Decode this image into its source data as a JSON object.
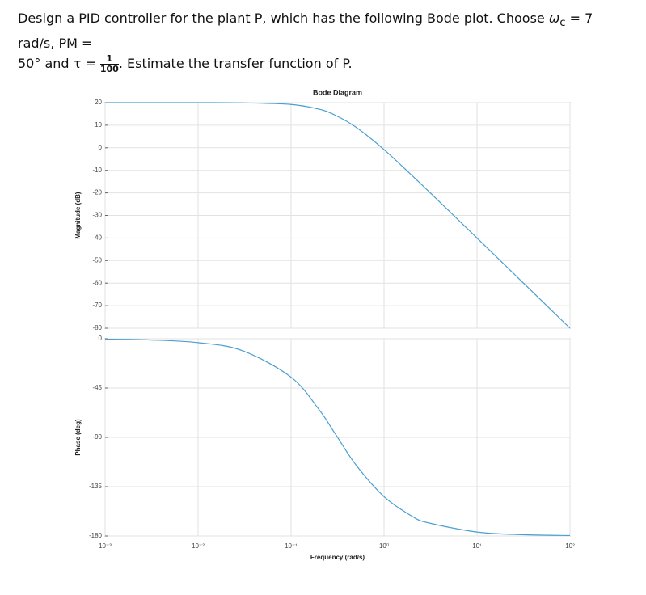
{
  "question": [
    "Design a PID controller for the plant P, which has the following Bode plot. Choose",
    "ω",
    "c",
    "= 7 rad/s, PM =",
    "50° and τ =",
    "1",
    "100",
    ". Estimate the transfer function of P."
  ],
  "chart_data": [
    {
      "type": "line",
      "title": "Bode Diagram",
      "ylabel": "Magnitude (dB)",
      "log_x": true,
      "grid": true,
      "x": [
        0.001,
        0.003,
        0.01,
        0.03,
        0.1,
        0.2,
        0.3,
        0.5,
        1,
        2,
        3,
        10,
        30,
        100
      ],
      "values": [
        20,
        20,
        20,
        19.9,
        19.2,
        17.1,
        14.4,
        9.1,
        -0.8,
        -12.3,
        -19.2,
        -40,
        -59.1,
        -80
      ],
      "color": "#4a9fd0",
      "xlim": [
        0.001,
        100
      ],
      "ylim": [
        -80,
        20
      ],
      "yticks": [
        20,
        10,
        0,
        -10,
        -20,
        -30,
        -40,
        -50,
        -60,
        -70,
        -80
      ]
    },
    {
      "type": "line",
      "ylabel": "Phase (deg)",
      "xlabel": "Frequency (rad/s)",
      "log_x": true,
      "grid": true,
      "x": [
        0.001,
        0.003,
        0.01,
        0.03,
        0.1,
        0.2,
        0.3,
        0.5,
        1,
        2,
        3,
        10,
        30,
        100
      ],
      "values": [
        -0.4,
        -1.1,
        -3.6,
        -10.9,
        -35.1,
        -64.7,
        -87,
        -115.3,
        -144.1,
        -162,
        -168,
        -176.4,
        -178.8,
        -179.6
      ],
      "color": "#4a9fd0",
      "xlim": [
        0.001,
        100
      ],
      "ylim": [
        -180,
        0
      ],
      "xticks": [
        {
          "value": 0.001,
          "label": "10⁻³"
        },
        {
          "value": 0.01,
          "label": "10⁻²"
        },
        {
          "value": 0.1,
          "label": "10⁻¹"
        },
        {
          "value": 1,
          "label": "10⁰"
        },
        {
          "value": 10,
          "label": "10¹"
        },
        {
          "value": 100,
          "label": "10²"
        }
      ],
      "yticks": [
        0,
        -45,
        -90,
        -135,
        -180
      ]
    }
  ]
}
